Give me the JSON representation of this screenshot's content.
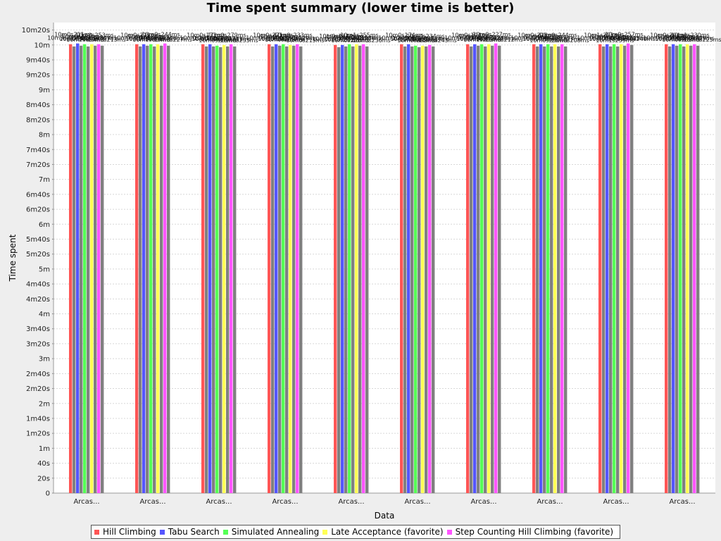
{
  "chart_data": {
    "type": "bar",
    "title": "Time spent summary (lower time is better)",
    "xlabel": "Data",
    "ylabel": "Time spent",
    "ylim_seconds": [
      0,
      630
    ],
    "y_ticks": [
      "0",
      "20s",
      "40s",
      "1m",
      "1m20s",
      "1m40s",
      "2m",
      "2m20s",
      "2m40s",
      "3m",
      "3m20s",
      "3m40s",
      "4m",
      "4m20s",
      "4m40s",
      "5m",
      "5m20s",
      "5m40s",
      "6m",
      "6m20s",
      "6m40s",
      "7m",
      "7m20s",
      "7m40s",
      "8m",
      "8m20s",
      "8m40s",
      "9m",
      "9m20s",
      "9m40s",
      "10m",
      "10m20s"
    ],
    "y_tick_seconds": [
      0,
      20,
      40,
      60,
      80,
      100,
      120,
      140,
      160,
      180,
      200,
      220,
      240,
      260,
      280,
      300,
      320,
      340,
      360,
      380,
      400,
      420,
      440,
      460,
      480,
      500,
      520,
      540,
      560,
      580,
      600,
      620
    ],
    "grid": true,
    "legend_position": "bottom",
    "categories": [
      "Arcas...",
      "Arcas...",
      "Arcas...",
      "Arcas...",
      "Arcas...",
      "Arcas...",
      "Arcas...",
      "Arcas...",
      "Arcas...",
      "Arcas..."
    ],
    "series": [
      {
        "name": "Hill Climbing",
        "color": "#ff5555",
        "values_seconds": [
          601,
          601,
          601,
          601,
          600,
          601,
          601,
          601,
          601,
          601
        ]
      },
      {
        "name": "",
        "color": "#808080",
        "values_seconds": [
          598,
          598,
          598,
          598,
          597,
          598,
          598,
          598,
          598,
          598
        ]
      },
      {
        "name": "Tabu Search",
        "color": "#5555ff",
        "values_seconds": [
          602,
          601,
          601,
          601,
          600,
          601,
          601,
          601,
          601,
          601
        ]
      },
      {
        "name": "",
        "color": "#808080",
        "values_seconds": [
          599,
          599,
          598,
          599,
          598,
          598,
          599,
          598,
          598,
          599
        ]
      },
      {
        "name": "Simulated Annealing",
        "color": "#55ff55",
        "values_seconds": [
          601,
          601,
          599,
          601,
          601,
          599,
          601,
          601,
          601,
          601
        ]
      },
      {
        "name": "",
        "color": "#808080",
        "values_seconds": [
          598,
          598,
          597,
          598,
          598,
          597,
          598,
          598,
          598,
          598
        ]
      },
      {
        "name": "Late Acceptance (favorite)",
        "color": "#ffff55",
        "values_seconds": [
          601,
          601,
          600,
          600,
          601,
          599,
          601,
          601,
          601,
          601
        ]
      },
      {
        "name": "",
        "color": "#808080",
        "values_seconds": [
          599,
          599,
          598,
          599,
          599,
          598,
          599,
          598,
          599,
          599
        ]
      },
      {
        "name": "Step Counting Hill Climbing (favorite)",
        "color": "#ff55ff",
        "values_seconds": [
          601,
          602,
          601,
          601,
          601,
          600,
          602,
          601,
          602,
          601
        ]
      },
      {
        "name": "",
        "color": "#808080",
        "values_seconds": [
          599,
          599,
          598,
          598,
          598,
          598,
          599,
          598,
          600,
          599
        ]
      }
    ],
    "bar_labels": [
      "10m3s215ms",
      "10m0s302ms",
      "10m0s211ms",
      "10m2s994ms",
      "10m0s261ms",
      "10m0s128ms",
      "10m0s187ms",
      "10m0s307ms",
      "10m0s253ms",
      "10m0s213ms",
      "10m0s303ms",
      "10m1s187ms",
      "10m0s219ms",
      "10m1s004ms",
      "10m1s154ms",
      "10m0s183ms",
      "10m1s215ms",
      "10m0s306ms",
      "10m0s244ms",
      "10m0s227ms",
      "10m0s127ms",
      "10m0s310ms",
      "10m0s173ms",
      "10m0s283ms",
      "10m1s197ms",
      "10m0s213ms",
      "10m0s322ms",
      "10m0s211ms",
      "10m0s279ms",
      "10m0s235ms",
      "10m0s298ms",
      "10m0s242ms",
      "10m0s271ms",
      "10m0s205ms",
      "10m0s284ms",
      "10m1s226ms",
      "10m0s232ms",
      "10m0s229ms",
      "10m0s233ms",
      "10m0s215ms",
      "10m0s207ms",
      "10m0s231ms",
      "10m0s274ms",
      "10m0s226ms",
      "10m0s209ms",
      "10m0s216ms",
      "10m0s218ms",
      "10m0s286ms",
      "10m1s255ms",
      "10m0s236ms",
      "10m0s302ms",
      "10m0s201ms",
      "10m0s174ms",
      "10m0s293ms",
      "10m0s225ms",
      "10m0s298ms",
      "10m0s283ms",
      "10m0s264ms",
      "10m0s234ms",
      "10m0s243ms",
      "10m0s213ms",
      "10m0s163ms",
      "10m0s194ms",
      "10m1s203ms",
      "10m2s257ms",
      "10m0s212ms",
      "10m0s253ms",
      "10m0s258ms",
      "10m0s227ms",
      "10m0s212ms",
      "10m0s273ms",
      "10m0s296ms",
      "10m0s218ms",
      "10m0s230ms",
      "10m0s253ms",
      "10m0s272ms",
      "10m0s268ms",
      "10m0s227ms",
      "10m0s244ms",
      "10m0s208ms",
      "10m0s203ms",
      "10m0s233ms",
      "10m1s253ms",
      "10m1s259ms",
      "10m0s249ms",
      "10m0s248ms",
      "10m0s244ms",
      "10m2s225ms",
      "10m0s257ms",
      "10m0s240ms",
      "10m0s253ms",
      "10m0s254ms",
      "10m0s264ms",
      "10m0s203ms",
      "10m0s278ms",
      "10m1s294ms",
      "10m0s224ms",
      "10m0s229ms",
      "10m1s230ms",
      "10m0s225ms"
    ]
  }
}
